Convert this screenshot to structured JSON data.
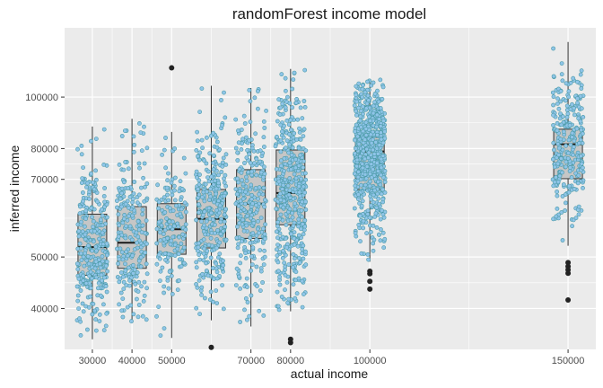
{
  "chart_data": {
    "type": "box",
    "title": "randomForest income model",
    "xlabel": "actual income",
    "ylabel": "inferred income",
    "y_scale": "log",
    "xlim": [
      23000,
      157000
    ],
    "ylim": [
      33500,
      135000
    ],
    "x_ticks": [
      30000,
      40000,
      50000,
      70000,
      80000,
      100000,
      150000
    ],
    "y_ticks": [
      40000,
      50000,
      70000,
      80000,
      100000
    ],
    "x_tick_labels": [
      "30000",
      "40000",
      "50000",
      "70000",
      "80000",
      "100000",
      "150000"
    ],
    "y_tick_labels": [
      "40000",
      "50000",
      "70000",
      "80000",
      "100000"
    ],
    "grid": true,
    "panel_background": "#ebebeb",
    "box_fill": "#c6c6c6",
    "point_fill": "#8fc4e8",
    "point_stroke": "#4a9aa6",
    "outlier_color": "#222222",
    "groups": [
      {
        "x": 30000,
        "n": 300,
        "min": 35000,
        "q1": 46200,
        "median": 52200,
        "q3": 60200,
        "max": 88000,
        "outliers": []
      },
      {
        "x": 40000,
        "n": 210,
        "min": 37500,
        "q1": 47600,
        "median": 53200,
        "q3": 62200,
        "max": 91000,
        "outliers": []
      },
      {
        "x": 50000,
        "n": 170,
        "min": 35200,
        "q1": 50600,
        "median": 56400,
        "q3": 63000,
        "max": 86000,
        "outliers": [
          113500
        ]
      },
      {
        "x": 60000,
        "n": 300,
        "min": 38000,
        "q1": 52000,
        "median": 59000,
        "q3": 67000,
        "max": 105000,
        "outliers": [
          33800
        ]
      },
      {
        "x": 70000,
        "n": 260,
        "min": 37000,
        "q1": 54200,
        "median": 63000,
        "q3": 73000,
        "max": 104000,
        "outliers": []
      },
      {
        "x": 80000,
        "n": 420,
        "min": 39500,
        "q1": 57500,
        "median": 66000,
        "q3": 79500,
        "max": 113000,
        "outliers": [
          35000,
          34500
        ]
      },
      {
        "x": 100000,
        "n": 640,
        "min": 49000,
        "q1": 67000,
        "median": 79000,
        "q3": 84000,
        "max": 108000,
        "outliers": [
          47000,
          46500,
          45000,
          43500
        ]
      },
      {
        "x": 150000,
        "n": 270,
        "min": 52500,
        "q1": 70200,
        "median": 81500,
        "q3": 87000,
        "max": 127000,
        "outliers": [
          48800,
          48000,
          47300,
          46600,
          41500
        ]
      }
    ]
  }
}
